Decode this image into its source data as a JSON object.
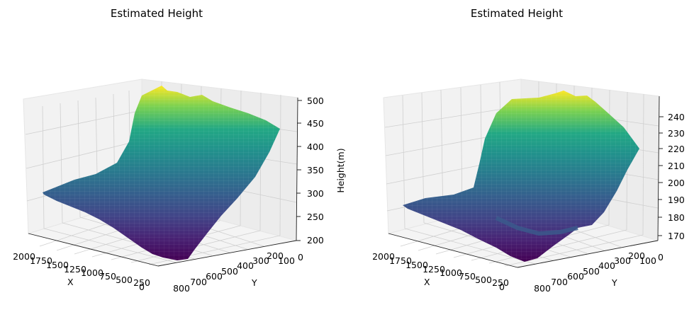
{
  "chart_data": [
    {
      "type": "surface",
      "title": "Estimated Height",
      "xlabel": "X",
      "ylabel": "Y",
      "zlabel": "Height(m)",
      "x_ticks": [
        "2000",
        "1750",
        "1500",
        "1250",
        "1000",
        "750",
        "500",
        "250",
        "0"
      ],
      "y_ticks": [
        "800",
        "700",
        "600",
        "500",
        "400",
        "300",
        "200",
        "100",
        "0"
      ],
      "z_ticks": [
        "200",
        "250",
        "300",
        "350",
        "400",
        "450",
        "500"
      ],
      "xlim": [
        0,
        2000
      ],
      "ylim": [
        0,
        800
      ],
      "zlim": [
        200,
        500
      ],
      "colormap": "viridis",
      "grid": true
    },
    {
      "type": "surface",
      "title": "Estimated Height",
      "xlabel": "X",
      "ylabel": "Y",
      "zlabel": "",
      "x_ticks": [
        "2000",
        "1750",
        "1500",
        "1250",
        "1000",
        "750",
        "500",
        "250",
        "0"
      ],
      "y_ticks": [
        "800",
        "700",
        "600",
        "500",
        "400",
        "300",
        "200",
        "100",
        "0"
      ],
      "z_ticks": [
        "170",
        "180",
        "190",
        "200",
        "210",
        "220",
        "230",
        "240"
      ],
      "xlim": [
        0,
        2000
      ],
      "ylim": [
        0,
        800
      ],
      "zlim": [
        167,
        248
      ],
      "colormap": "viridis",
      "grid": true
    }
  ]
}
